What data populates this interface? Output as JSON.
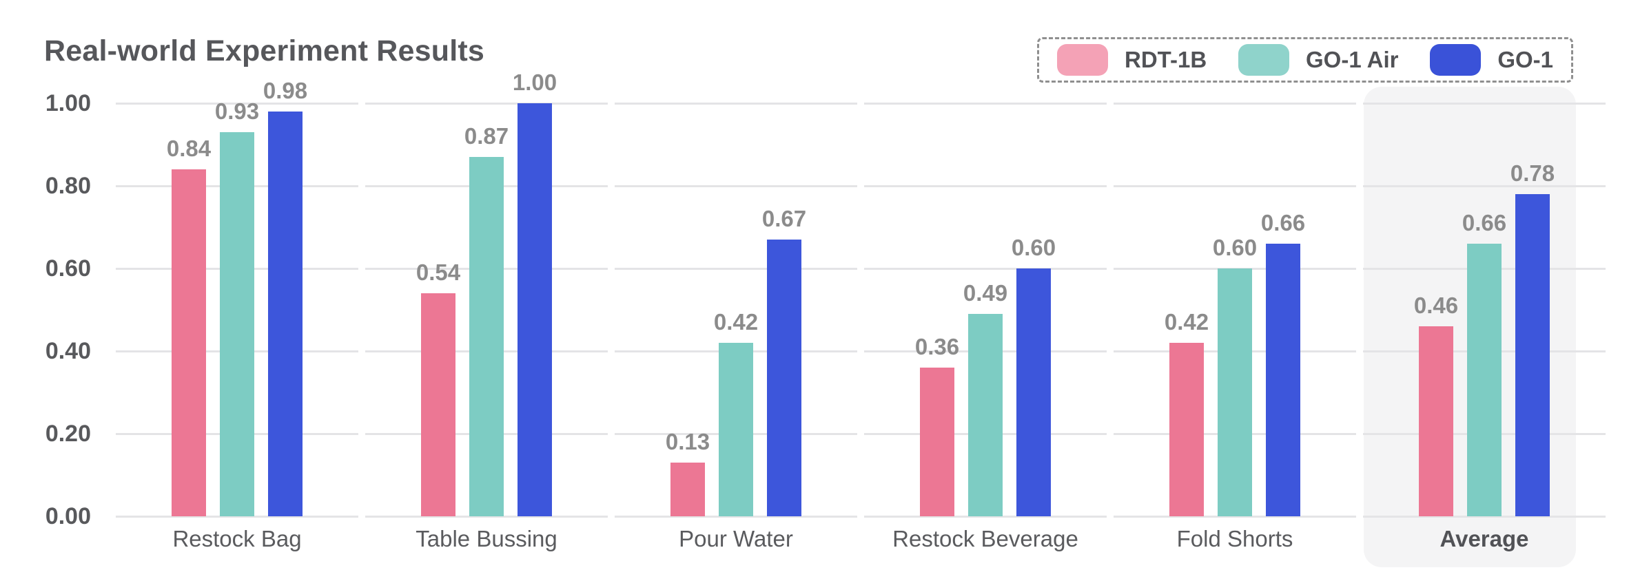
{
  "chart_data": {
    "type": "bar",
    "title": "Real-world Experiment Results",
    "categories": [
      "Restock Bag",
      "Table Bussing",
      "Pour Water",
      "Restock Beverage",
      "Fold Shorts",
      "Average"
    ],
    "series": [
      {
        "name": "RDT-1B",
        "color": "#EC7794",
        "legend_color": "#F4A2B6",
        "values": [
          0.84,
          0.54,
          0.13,
          0.36,
          0.42,
          0.46
        ]
      },
      {
        "name": "GO-1 Air",
        "color": "#7DCCC3",
        "legend_color": "#8FD3CB",
        "values": [
          0.93,
          0.87,
          0.42,
          0.49,
          0.6,
          0.66
        ]
      },
      {
        "name": "GO-1",
        "color": "#3D56DB",
        "legend_color": "#3A52D8",
        "values": [
          0.98,
          1.0,
          0.67,
          0.6,
          0.66,
          0.78
        ]
      }
    ],
    "xlabel": "",
    "ylabel": "",
    "ylim": [
      0,
      1
    ],
    "yticks": [
      0.0,
      0.2,
      0.4,
      0.6,
      0.8,
      1.0
    ],
    "ytick_format_decimals": 2,
    "value_label_decimals": 2,
    "bar_value_labels_shown": true,
    "grid": "horizontal gridlines, segmented per category group",
    "legend_position": "top-right, dashed outlined box",
    "highlight_category": "Average",
    "colors": {
      "title_text": "#56575B",
      "tick_label_text": "#58595C",
      "value_label_text": "#8B8B8B",
      "category_label_text": "#5A5B5E",
      "legend_label_text": "#515256",
      "legend_border": "#8F8F8F",
      "gridline": "#E4E4E6",
      "highlight_background": "#F4F4F5",
      "page_background": "#FFFFFF"
    }
  }
}
